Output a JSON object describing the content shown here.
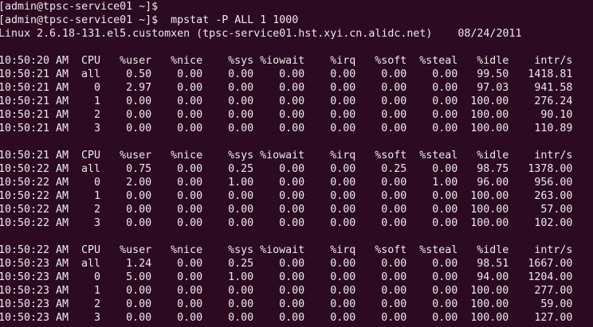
{
  "terminal": {
    "background": "#2c0a22",
    "foreground": "#ecebe8",
    "partial_prompt": "[admin@tpsc-service01 ~]$",
    "prompt": "[admin@tpsc-service01 ~]$",
    "command": "mpstat -P ALL 1 1000",
    "system_info": "Linux 2.6.18-131.el5.customxen (tpsc-service01.hst.xyi.cn.alidc.net)",
    "date": "08/24/2011"
  },
  "blocks": [
    {
      "header": [
        "10:50:20 AM",
        "CPU",
        "%user",
        "%nice",
        "%sys",
        "%iowait",
        "%irq",
        "%soft",
        "%steal",
        "%idle",
        "intr/s"
      ],
      "rows": [
        [
          "10:50:21 AM",
          "all",
          "0.50",
          "0.00",
          "0.00",
          "0.00",
          "0.00",
          "0.00",
          "0.00",
          "99.50",
          "1418.81"
        ],
        [
          "10:50:21 AM",
          "0",
          "2.97",
          "0.00",
          "0.00",
          "0.00",
          "0.00",
          "0.00",
          "0.00",
          "97.03",
          "941.58"
        ],
        [
          "10:50:21 AM",
          "1",
          "0.00",
          "0.00",
          "0.00",
          "0.00",
          "0.00",
          "0.00",
          "0.00",
          "100.00",
          "276.24"
        ],
        [
          "10:50:21 AM",
          "2",
          "0.00",
          "0.00",
          "0.00",
          "0.00",
          "0.00",
          "0.00",
          "0.00",
          "100.00",
          "90.10"
        ],
        [
          "10:50:21 AM",
          "3",
          "0.00",
          "0.00",
          "0.00",
          "0.00",
          "0.00",
          "0.00",
          "0.00",
          "100.00",
          "110.89"
        ]
      ]
    },
    {
      "header": [
        "10:50:21 AM",
        "CPU",
        "%user",
        "%nice",
        "%sys",
        "%iowait",
        "%irq",
        "%soft",
        "%steal",
        "%idle",
        "intr/s"
      ],
      "rows": [
        [
          "10:50:22 AM",
          "all",
          "0.75",
          "0.00",
          "0.25",
          "0.00",
          "0.00",
          "0.25",
          "0.00",
          "98.75",
          "1378.00"
        ],
        [
          "10:50:22 AM",
          "0",
          "2.00",
          "0.00",
          "1.00",
          "0.00",
          "0.00",
          "0.00",
          "1.00",
          "96.00",
          "956.00"
        ],
        [
          "10:50:22 AM",
          "1",
          "0.00",
          "0.00",
          "0.00",
          "0.00",
          "0.00",
          "0.00",
          "0.00",
          "100.00",
          "263.00"
        ],
        [
          "10:50:22 AM",
          "2",
          "0.00",
          "0.00",
          "0.00",
          "0.00",
          "0.00",
          "0.00",
          "0.00",
          "100.00",
          "57.00"
        ],
        [
          "10:50:22 AM",
          "3",
          "0.00",
          "0.00",
          "0.00",
          "0.00",
          "0.00",
          "0.00",
          "0.00",
          "100.00",
          "102.00"
        ]
      ]
    },
    {
      "header": [
        "10:50:22 AM",
        "CPU",
        "%user",
        "%nice",
        "%sys",
        "%iowait",
        "%irq",
        "%soft",
        "%steal",
        "%idle",
        "intr/s"
      ],
      "rows": [
        [
          "10:50:23 AM",
          "all",
          "1.24",
          "0.00",
          "0.25",
          "0.00",
          "0.00",
          "0.00",
          "0.00",
          "98.51",
          "1667.00"
        ],
        [
          "10:50:23 AM",
          "0",
          "5.00",
          "0.00",
          "1.00",
          "0.00",
          "0.00",
          "0.00",
          "0.00",
          "94.00",
          "1204.00"
        ],
        [
          "10:50:23 AM",
          "1",
          "0.00",
          "0.00",
          "0.00",
          "0.00",
          "0.00",
          "0.00",
          "0.00",
          "100.00",
          "277.00"
        ],
        [
          "10:50:23 AM",
          "2",
          "0.00",
          "0.00",
          "0.00",
          "0.00",
          "0.00",
          "0.00",
          "0.00",
          "100.00",
          "59.00"
        ],
        [
          "10:50:23 AM",
          "3",
          "0.00",
          "0.00",
          "0.00",
          "0.00",
          "0.00",
          "0.00",
          "0.00",
          "100.00",
          "127.00"
        ]
      ]
    }
  ]
}
